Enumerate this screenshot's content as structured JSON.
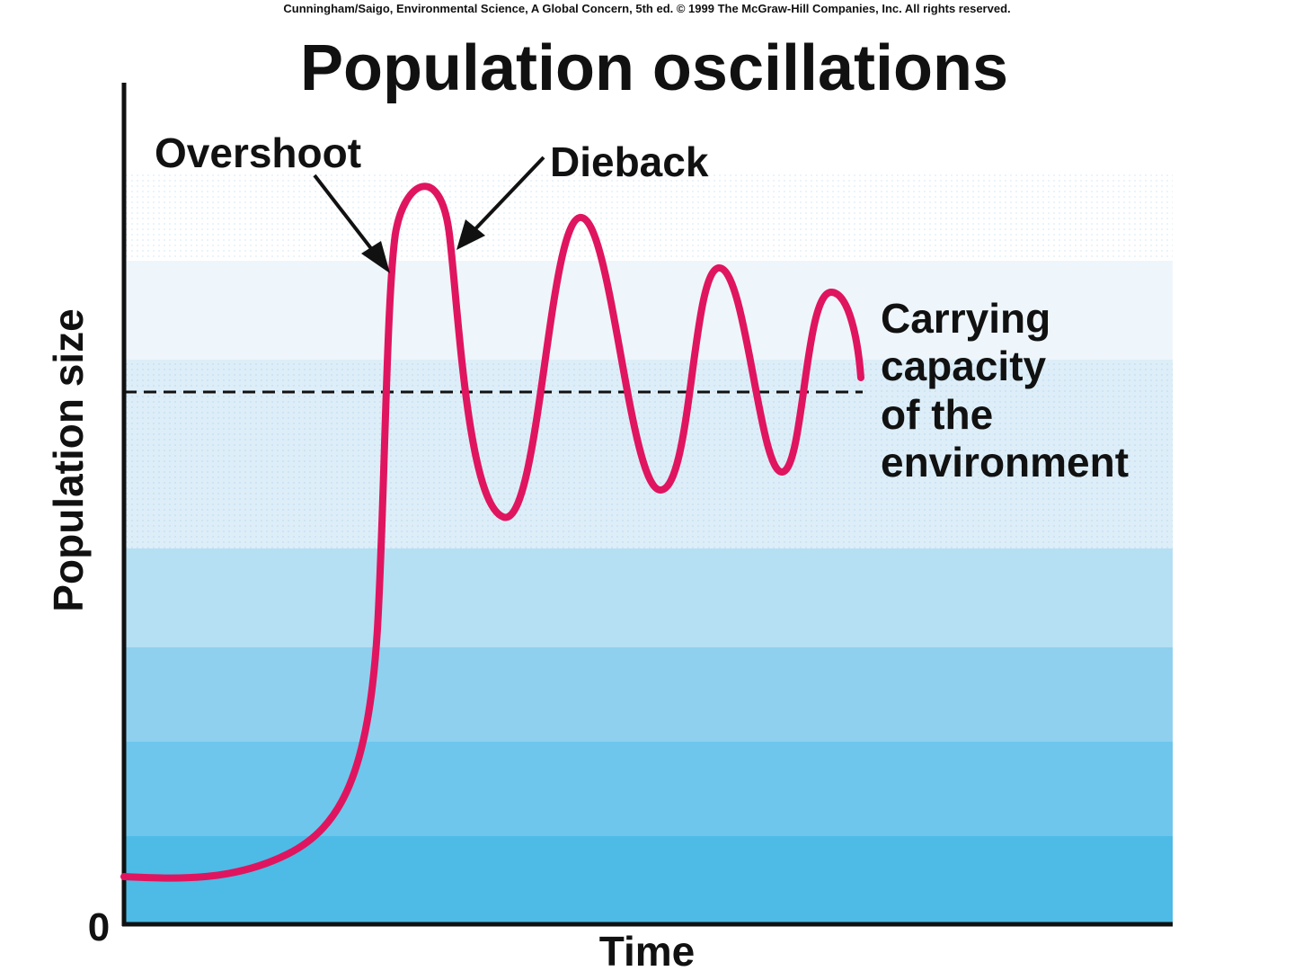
{
  "source": "Cunningham/Saigo, Environmental Science, A Global Concern, 5th ed. © 1999 The McGraw-Hill Companies, Inc. All rights reserved.",
  "title": "Population oscillations",
  "labels": {
    "overshoot": "Overshoot",
    "dieback": "Dieback",
    "carrying_capacity": [
      "Carrying",
      "capacity",
      "of the",
      "environment"
    ]
  },
  "axes": {
    "y_label": "Population size",
    "y_origin": "0",
    "x_label": "Time"
  }
}
